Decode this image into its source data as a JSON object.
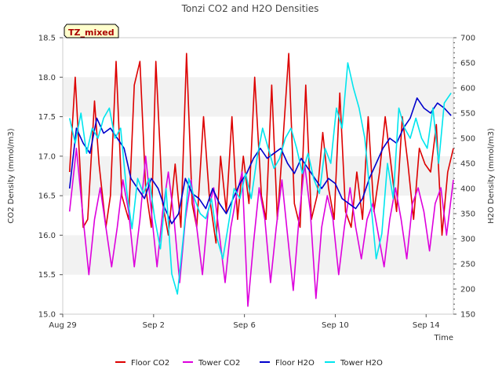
{
  "chart_data": {
    "type": "line",
    "title": "Tonzi CO2 and H2O Densities",
    "badge": "TZ_mixed",
    "xlabel": "Time",
    "ylabel_left": "CO2 Density (mmol/m3)",
    "ylabel_right": "H2O Density (mmol/m3)",
    "ylim_left": [
      15.0,
      18.5
    ],
    "ylim_right": [
      150,
      700
    ],
    "xlim_days": [
      0,
      17.2
    ],
    "x_ticks": [
      {
        "day": 0,
        "label": "Aug 29"
      },
      {
        "day": 4,
        "label": "Sep 2"
      },
      {
        "day": 8,
        "label": "Sep 6"
      },
      {
        "day": 12,
        "label": "Sep 10"
      },
      {
        "day": 16,
        "label": "Sep 14"
      }
    ],
    "y_ticks_left": [
      "15.0",
      "15.5",
      "16.0",
      "16.5",
      "17.0",
      "17.5",
      "18.0",
      "18.5"
    ],
    "y_ticks_right": [
      "150",
      "200",
      "250",
      "300",
      "350",
      "400",
      "450",
      "500",
      "550",
      "600",
      "650",
      "700"
    ],
    "series": [
      {
        "name": "Floor CO2",
        "color": "#dd0000",
        "axis": "left",
        "x": [
          0.3,
          0.55,
          0.9,
          1.1,
          1.4,
          1.6,
          1.9,
          2.1,
          2.35,
          2.6,
          2.9,
          3.15,
          3.4,
          3.65,
          3.9,
          4.1,
          4.4,
          4.65,
          4.95,
          5.2,
          5.45,
          5.7,
          5.9,
          6.2,
          6.45,
          6.75,
          6.95,
          7.2,
          7.45,
          7.7,
          7.95,
          8.2,
          8.45,
          8.75,
          8.95,
          9.2,
          9.45,
          9.7,
          9.95,
          10.2,
          10.45,
          10.7,
          10.95,
          11.2,
          11.45,
          11.7,
          11.95,
          12.2,
          12.45,
          12.7,
          12.95,
          13.2,
          13.45,
          13.7,
          13.95,
          14.2,
          14.45,
          14.7,
          14.95,
          15.2,
          15.45,
          15.7,
          15.95,
          16.2,
          16.45,
          16.7,
          16.95,
          17.2
        ],
        "y": [
          16.8,
          18.0,
          16.1,
          16.2,
          17.7,
          16.9,
          16.1,
          16.5,
          18.2,
          16.5,
          16.2,
          17.9,
          18.2,
          16.6,
          16.1,
          18.2,
          16.4,
          16.0,
          16.9,
          16.1,
          18.3,
          16.4,
          16.1,
          17.5,
          16.5,
          15.9,
          17.0,
          16.3,
          17.5,
          16.2,
          17.0,
          16.4,
          18.0,
          16.5,
          16.2,
          17.9,
          16.2,
          17.2,
          18.3,
          16.4,
          16.1,
          17.9,
          16.2,
          16.5,
          17.3,
          16.6,
          16.2,
          17.8,
          16.3,
          16.1,
          16.8,
          16.2,
          17.5,
          16.3,
          16.8,
          17.5,
          16.9,
          16.3,
          17.5,
          16.9,
          16.2,
          17.1,
          16.9,
          16.8,
          17.4,
          16.0,
          16.8,
          17.1
        ]
      },
      {
        "name": "Tower CO2",
        "color": "#dd00dd",
        "axis": "left",
        "x": [
          0.3,
          0.6,
          0.9,
          1.15,
          1.4,
          1.65,
          1.9,
          2.15,
          2.4,
          2.65,
          2.9,
          3.15,
          3.4,
          3.65,
          3.9,
          4.15,
          4.4,
          4.65,
          4.9,
          5.15,
          5.4,
          5.65,
          5.9,
          6.15,
          6.4,
          6.65,
          6.9,
          7.15,
          7.4,
          7.65,
          7.9,
          8.15,
          8.4,
          8.65,
          8.9,
          9.15,
          9.4,
          9.65,
          9.9,
          10.15,
          10.4,
          10.65,
          10.9,
          11.15,
          11.4,
          11.65,
          11.9,
          12.15,
          12.4,
          12.65,
          12.9,
          13.15,
          13.4,
          13.65,
          13.9,
          14.15,
          14.4,
          14.65,
          14.9,
          15.15,
          15.4,
          15.65,
          15.9,
          16.15,
          16.4,
          16.65,
          16.9,
          17.2
        ],
        "y": [
          16.3,
          17.1,
          16.2,
          15.5,
          16.2,
          16.6,
          16.1,
          15.6,
          16.1,
          16.7,
          16.3,
          15.6,
          16.2,
          17.0,
          16.3,
          15.6,
          16.3,
          16.8,
          16.2,
          15.4,
          16.2,
          16.7,
          16.1,
          15.5,
          16.3,
          16.6,
          16.0,
          15.4,
          16.1,
          16.5,
          16.8,
          15.1,
          15.9,
          16.6,
          16.2,
          15.4,
          16.1,
          16.7,
          16.0,
          15.3,
          16.2,
          16.9,
          16.3,
          15.2,
          16.1,
          16.5,
          16.2,
          15.5,
          16.1,
          16.6,
          16.1,
          15.7,
          16.2,
          16.4,
          16.0,
          15.6,
          16.2,
          16.6,
          16.2,
          15.7,
          16.4,
          16.6,
          16.3,
          15.8,
          16.4,
          16.6,
          16.0,
          16.7
        ]
      },
      {
        "name": "Floor H2O",
        "color": "#0000cc",
        "axis": "right",
        "x": [
          0.3,
          0.6,
          0.9,
          1.2,
          1.5,
          1.8,
          2.1,
          2.4,
          2.7,
          3.0,
          3.3,
          3.6,
          3.9,
          4.2,
          4.5,
          4.8,
          5.1,
          5.4,
          5.7,
          6.0,
          6.3,
          6.6,
          6.9,
          7.2,
          7.5,
          7.8,
          8.1,
          8.4,
          8.7,
          9.0,
          9.3,
          9.6,
          9.9,
          10.2,
          10.5,
          10.8,
          11.1,
          11.4,
          11.7,
          12.0,
          12.3,
          12.6,
          12.9,
          13.2,
          13.5,
          13.8,
          14.1,
          14.4,
          14.7,
          15.0,
          15.3,
          15.6,
          15.9,
          16.2,
          16.5,
          16.8,
          17.1
        ],
        "y": [
          400,
          520,
          490,
          470,
          540,
          510,
          520,
          500,
          480,
          420,
          400,
          380,
          420,
          400,
          360,
          330,
          350,
          420,
          390,
          380,
          360,
          400,
          370,
          350,
          380,
          410,
          430,
          460,
          480,
          460,
          470,
          480,
          450,
          430,
          460,
          440,
          420,
          400,
          420,
          410,
          380,
          370,
          360,
          380,
          420,
          450,
          480,
          500,
          490,
          520,
          540,
          580,
          560,
          550,
          570,
          560,
          545
        ]
      },
      {
        "name": "Tower H2O",
        "color": "#00e5ee",
        "axis": "right",
        "x": [
          0.3,
          0.55,
          0.8,
          1.05,
          1.3,
          1.55,
          1.8,
          2.05,
          2.3,
          2.55,
          2.8,
          3.05,
          3.3,
          3.55,
          3.8,
          4.05,
          4.3,
          4.55,
          4.8,
          5.05,
          5.3,
          5.55,
          5.8,
          6.05,
          6.3,
          6.55,
          6.8,
          7.05,
          7.3,
          7.55,
          7.8,
          8.05,
          8.3,
          8.55,
          8.8,
          9.05,
          9.3,
          9.55,
          9.8,
          10.05,
          10.3,
          10.55,
          10.8,
          11.05,
          11.3,
          11.55,
          11.8,
          12.05,
          12.3,
          12.55,
          12.8,
          13.05,
          13.3,
          13.55,
          13.8,
          14.05,
          14.3,
          14.55,
          14.8,
          15.05,
          15.3,
          15.55,
          15.8,
          16.05,
          16.3,
          16.55,
          16.8,
          17.1
        ],
        "y": [
          540,
          490,
          550,
          470,
          520,
          500,
          540,
          560,
          500,
          520,
          400,
          320,
          420,
          390,
          420,
          340,
          280,
          400,
          230,
          190,
          300,
          420,
          380,
          350,
          340,
          380,
          300,
          260,
          330,
          400,
          380,
          430,
          380,
          460,
          520,
          480,
          440,
          460,
          500,
          520,
          480,
          430,
          470,
          420,
          390,
          480,
          450,
          560,
          520,
          650,
          600,
          560,
          500,
          380,
          260,
          310,
          450,
          380,
          560,
          520,
          500,
          540,
          500,
          480,
          560,
          450,
          570,
          590
        ]
      }
    ],
    "legend_position": "bottom",
    "grid": true
  }
}
